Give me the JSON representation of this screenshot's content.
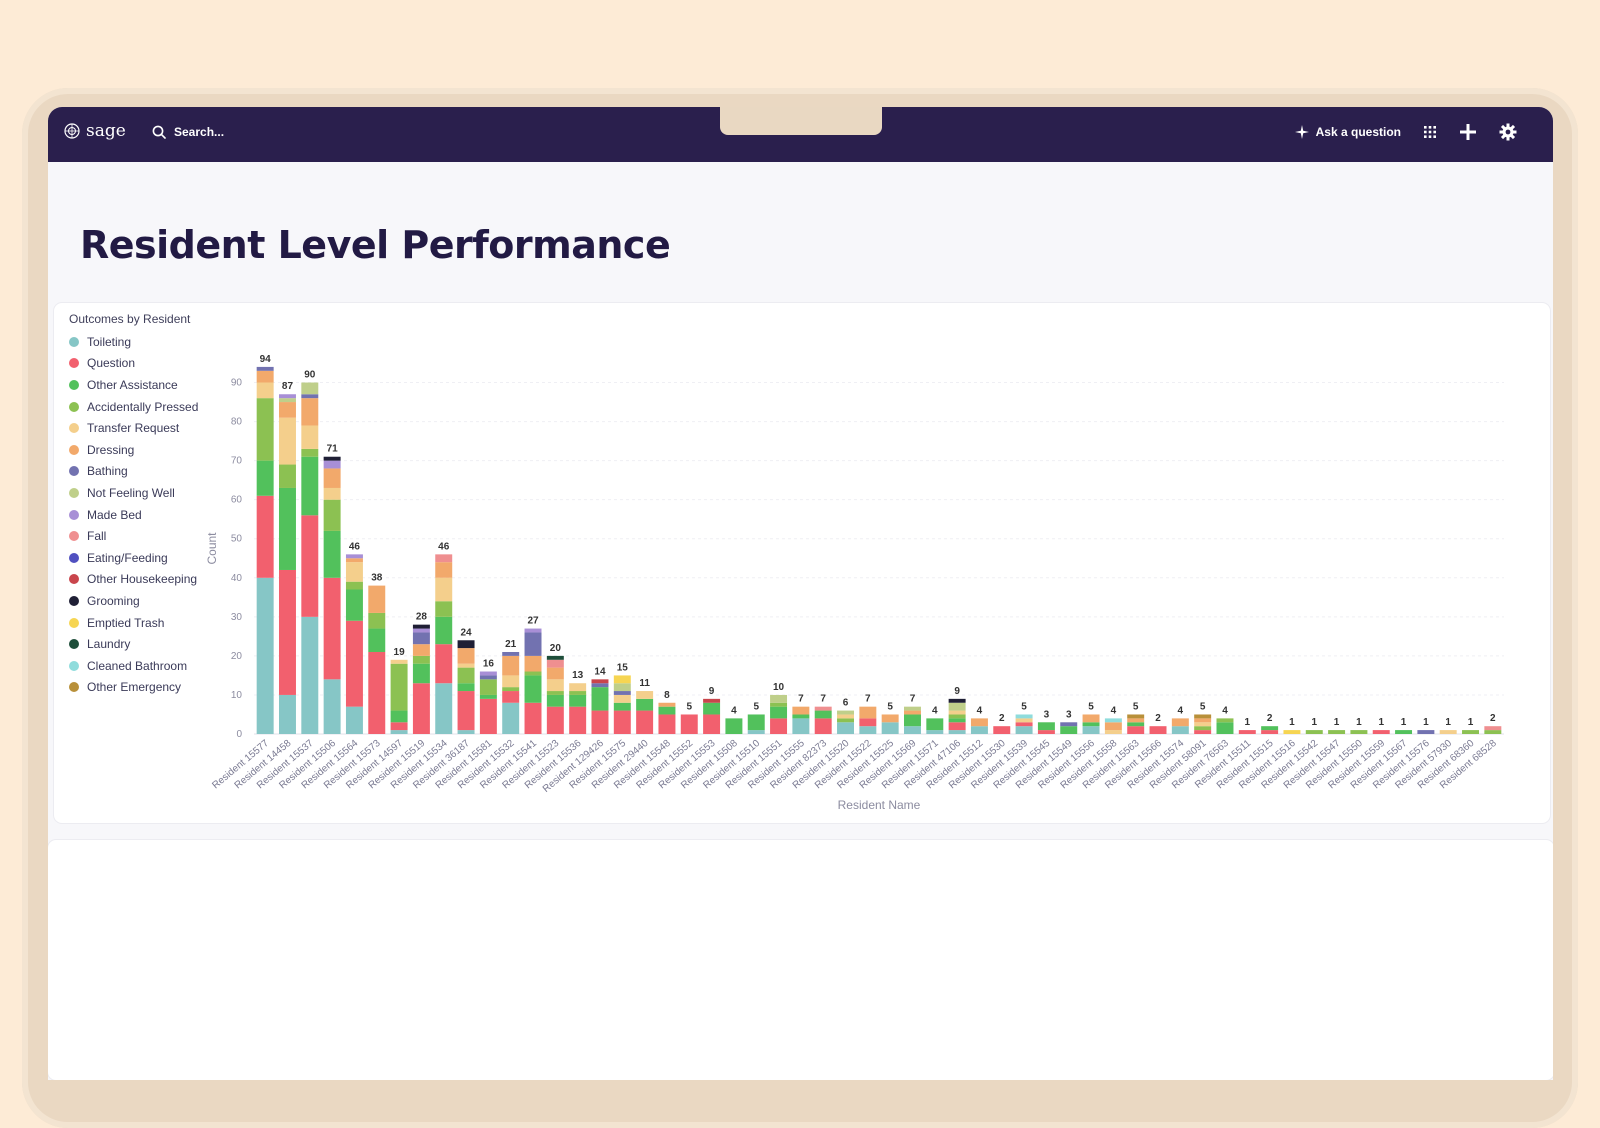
{
  "app": {
    "logo_text": "sage",
    "search_label": "Search...",
    "ask_label": "Ask a question"
  },
  "page": {
    "title": "Resident Level Performance"
  },
  "chart_data": {
    "type": "stacked-bar",
    "title": "Outcomes by Resident",
    "xlabel": "Resident Name",
    "ylabel": "Count",
    "ylim": [
      0,
      95
    ],
    "yticks": [
      0,
      10,
      20,
      30,
      40,
      50,
      60,
      70,
      80,
      90
    ],
    "grid": true,
    "legend_position": "left",
    "categories": [
      "Toileting",
      "Question",
      "Other Assistance",
      "Accidentally Pressed",
      "Transfer Request",
      "Dressing",
      "Bathing",
      "Not Feeling Well",
      "Made Bed",
      "Fall",
      "Eating/Feeding",
      "Other Housekeeping",
      "Grooming",
      "Emptied Trash",
      "Laundry",
      "Cleaned Bathroom",
      "Other Emergency"
    ],
    "colors": [
      "#86c6c6",
      "#f2606e",
      "#52c15c",
      "#8cc152",
      "#f4cf8c",
      "#f2a96b",
      "#7272b0",
      "#bfcf8a",
      "#a88fd6",
      "#ef8f90",
      "#5050c0",
      "#c9454c",
      "#1f1f35",
      "#f6d552",
      "#1e4e3a",
      "#8fdcdc",
      "#b8903a"
    ],
    "residents": [
      {
        "name": "Resident 15577",
        "total": 94,
        "segments": [
          40,
          21,
          9,
          16,
          4,
          3,
          1
        ]
      },
      {
        "name": "Resident 14458",
        "total": 87,
        "segments": [
          10,
          32,
          21,
          6,
          12,
          4,
          0,
          1,
          1
        ]
      },
      {
        "name": "Resident 15537",
        "total": 90,
        "segments": [
          30,
          26,
          15,
          2,
          6,
          7,
          1,
          3
        ]
      },
      {
        "name": "Resident 15506",
        "total": 71,
        "segments": [
          14,
          26,
          12,
          8,
          3,
          5,
          0,
          0,
          2,
          0,
          0,
          0,
          1
        ]
      },
      {
        "name": "Resident 15564",
        "total": 46,
        "segments": [
          7,
          22,
          8,
          2,
          5,
          1,
          0,
          0,
          1
        ]
      },
      {
        "name": "Resident 15573",
        "total": 38,
        "segments": [
          0,
          21,
          6,
          4,
          0,
          7
        ]
      },
      {
        "name": "Resident 14597",
        "total": 19,
        "segments": [
          1,
          2,
          3,
          12,
          1
        ]
      },
      {
        "name": "Resident 15519",
        "total": 28,
        "segments": [
          0,
          13,
          5,
          2,
          0,
          3,
          3,
          0,
          1,
          0,
          0,
          0,
          1
        ]
      },
      {
        "name": "Resident 15534",
        "total": 46,
        "segments": [
          13,
          10,
          7,
          4,
          6,
          4,
          0,
          0,
          0,
          2
        ]
      },
      {
        "name": "Resident 36187",
        "total": 24,
        "segments": [
          1,
          10,
          2,
          4,
          1,
          4,
          0,
          0,
          0,
          0,
          0,
          0,
          2
        ]
      },
      {
        "name": "Resident 15581",
        "total": 16,
        "segments": [
          0,
          9,
          1,
          4,
          0,
          0,
          1,
          0,
          1
        ]
      },
      {
        "name": "Resident 15532",
        "total": 21,
        "segments": [
          8,
          3,
          0,
          1,
          3,
          5,
          1
        ]
      },
      {
        "name": "Resident 15541",
        "total": 27,
        "segments": [
          0,
          8,
          7,
          1,
          0,
          4,
          6,
          0,
          1
        ]
      },
      {
        "name": "Resident 15523",
        "total": 20,
        "segments": [
          0,
          7,
          3,
          1,
          3,
          3,
          0,
          0,
          0,
          2,
          0,
          0,
          0,
          0,
          1
        ]
      },
      {
        "name": "Resident 15536",
        "total": 13,
        "segments": [
          0,
          7,
          3,
          1,
          2
        ]
      },
      {
        "name": "Resident 129426",
        "total": 14,
        "segments": [
          0,
          6,
          6,
          0,
          0,
          0,
          1,
          0,
          0,
          0,
          0,
          1
        ]
      },
      {
        "name": "Resident 15575",
        "total": 15,
        "segments": [
          0,
          6,
          2,
          0,
          2,
          0,
          1,
          2,
          0,
          0,
          0,
          0,
          0,
          2
        ]
      },
      {
        "name": "Resident 29440",
        "total": 11,
        "segments": [
          0,
          6,
          3,
          0,
          2
        ]
      },
      {
        "name": "Resident 15548",
        "total": 8,
        "segments": [
          0,
          5,
          2,
          0,
          0,
          1
        ]
      },
      {
        "name": "Resident 15552",
        "total": 5,
        "segments": [
          0,
          5
        ]
      },
      {
        "name": "Resident 15553",
        "total": 9,
        "segments": [
          0,
          5,
          3,
          0,
          0,
          0,
          0,
          0,
          0,
          0,
          0,
          1
        ]
      },
      {
        "name": "Resident 15508",
        "total": 4,
        "segments": [
          0,
          0,
          4
        ]
      },
      {
        "name": "Resident 15510",
        "total": 5,
        "segments": [
          1,
          0,
          4
        ]
      },
      {
        "name": "Resident 15551",
        "total": 10,
        "segments": [
          0,
          4,
          3,
          1,
          0,
          0,
          0,
          2
        ]
      },
      {
        "name": "Resident 15555",
        "total": 7,
        "segments": [
          4,
          0,
          1,
          0,
          0,
          2
        ]
      },
      {
        "name": "Resident 82373",
        "total": 7,
        "segments": [
          0,
          4,
          2,
          0,
          0,
          0,
          0,
          0,
          0,
          1
        ]
      },
      {
        "name": "Resident 15520",
        "total": 6,
        "segments": [
          3,
          0,
          0,
          1,
          1,
          0,
          0,
          1
        ]
      },
      {
        "name": "Resident 15522",
        "total": 7,
        "segments": [
          2,
          2,
          0,
          0,
          0,
          3
        ]
      },
      {
        "name": "Resident 15525",
        "total": 5,
        "segments": [
          3,
          0,
          0,
          0,
          0,
          2
        ]
      },
      {
        "name": "Resident 15569",
        "total": 7,
        "segments": [
          2,
          0,
          3,
          0,
          0,
          1,
          0,
          1
        ]
      },
      {
        "name": "Resident 15571",
        "total": 4,
        "segments": [
          1,
          0,
          3
        ]
      },
      {
        "name": "Resident 47106",
        "total": 9,
        "segments": [
          1,
          2,
          1,
          1,
          1,
          0,
          0,
          2,
          0,
          0,
          0,
          0,
          1
        ]
      },
      {
        "name": "Resident 15512",
        "total": 4,
        "segments": [
          2,
          0,
          0,
          0,
          0,
          2
        ]
      },
      {
        "name": "Resident 15530",
        "total": 2,
        "segments": [
          0,
          2
        ]
      },
      {
        "name": "Resident 15539",
        "total": 5,
        "segments": [
          2,
          1,
          0,
          0,
          1,
          0,
          0,
          0,
          0,
          0,
          0,
          0,
          0,
          0,
          0,
          1
        ]
      },
      {
        "name": "Resident 15545",
        "total": 3,
        "segments": [
          0,
          1,
          2
        ]
      },
      {
        "name": "Resident 15549",
        "total": 3,
        "segments": [
          0,
          0,
          2,
          0,
          0,
          0,
          1
        ]
      },
      {
        "name": "Resident 15556",
        "total": 5,
        "segments": [
          2,
          0,
          1,
          0,
          0,
          2
        ]
      },
      {
        "name": "Resident 15558",
        "total": 4,
        "segments": [
          0,
          0,
          0,
          0,
          1,
          2,
          0,
          0,
          0,
          0,
          0,
          0,
          0,
          0,
          0,
          1
        ]
      },
      {
        "name": "Resident 15563",
        "total": 5,
        "segments": [
          0,
          2,
          1,
          0,
          0,
          1,
          0,
          0,
          0,
          0,
          0,
          0,
          0,
          0,
          0,
          0,
          1
        ]
      },
      {
        "name": "Resident 15566",
        "total": 2,
        "segments": [
          0,
          2
        ]
      },
      {
        "name": "Resident 15574",
        "total": 4,
        "segments": [
          2,
          0,
          0,
          0,
          0,
          2
        ]
      },
      {
        "name": "Resident 58091",
        "total": 5,
        "segments": [
          0,
          1,
          0,
          1,
          1,
          1,
          0,
          0,
          0,
          0,
          0,
          0,
          0,
          0,
          0,
          0,
          1
        ]
      },
      {
        "name": "Resident 76563",
        "total": 4,
        "segments": [
          0,
          0,
          3,
          1
        ]
      },
      {
        "name": "Resident 15511",
        "total": 1,
        "segments": [
          0,
          1
        ]
      },
      {
        "name": "Resident 15515",
        "total": 2,
        "segments": [
          0,
          1,
          1
        ]
      },
      {
        "name": "Resident 15516",
        "total": 1,
        "segments": [
          0,
          0,
          0,
          0,
          0,
          0,
          0,
          0,
          0,
          0,
          0,
          0,
          0,
          1
        ]
      },
      {
        "name": "Resident 15542",
        "total": 1,
        "segments": [
          0,
          0,
          0,
          1
        ]
      },
      {
        "name": "Resident 15547",
        "total": 1,
        "segments": [
          0,
          0,
          0,
          1
        ]
      },
      {
        "name": "Resident 15550",
        "total": 1,
        "segments": [
          0,
          0,
          0,
          1
        ]
      },
      {
        "name": "Resident 15559",
        "total": 1,
        "segments": [
          0,
          1
        ]
      },
      {
        "name": "Resident 15567",
        "total": 1,
        "segments": [
          0,
          0,
          1
        ]
      },
      {
        "name": "Resident 15576",
        "total": 1,
        "segments": [
          0,
          0,
          0,
          0,
          0,
          0,
          1
        ]
      },
      {
        "name": "Resident 57930",
        "total": 1,
        "segments": [
          0,
          0,
          0,
          0,
          1
        ]
      },
      {
        "name": "Resident 68360",
        "total": 1,
        "segments": [
          0,
          0,
          0,
          1
        ]
      },
      {
        "name": "Resident 68528",
        "total": 2,
        "segments": [
          0,
          0,
          0,
          1,
          0,
          0,
          0,
          0,
          0,
          1
        ]
      }
    ]
  }
}
